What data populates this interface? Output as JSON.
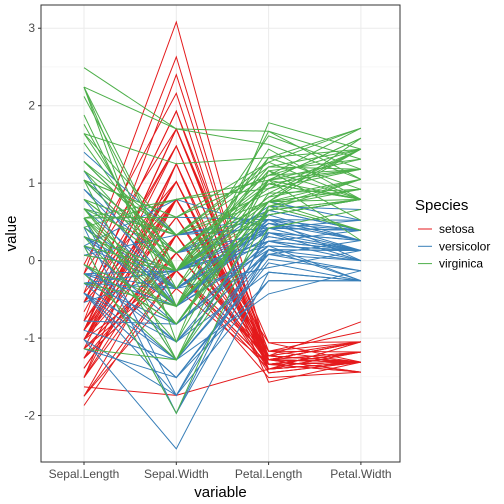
{
  "chart_data": {
    "type": "line",
    "subtype": "parallel-coordinates",
    "title": "",
    "xlabel": "variable",
    "ylabel": "value",
    "categories": [
      "Sepal.Length",
      "Sepal.Width",
      "Petal.Length",
      "Petal.Width"
    ],
    "ylim": [
      -2.6,
      3.3
    ],
    "yticks": [
      -2,
      -1,
      0,
      1,
      2,
      3
    ],
    "grid": true,
    "legend": {
      "title": "Species",
      "placement": "right",
      "entries": [
        "setosa",
        "versicolor",
        "virginica"
      ]
    },
    "colors": {
      "setosa": "#e41a1c",
      "versicolor": "#377eb8",
      "virginica": "#4daf4a",
      "panel_border": "#333333",
      "grid": "#ebebeb"
    },
    "series": [
      {
        "name": "setosa",
        "lines": [
          [
            -0.9,
            1.02,
            -1.34,
            -1.31
          ],
          [
            -1.14,
            -0.13,
            -1.34,
            -1.31
          ],
          [
            -1.39,
            0.33,
            -1.4,
            -1.31
          ],
          [
            -1.51,
            0.1,
            -1.28,
            -1.31
          ],
          [
            -1.02,
            1.25,
            -1.34,
            -1.31
          ],
          [
            -0.54,
            1.93,
            -1.17,
            -1.05
          ],
          [
            -1.51,
            0.79,
            -1.34,
            -1.18
          ],
          [
            -1.02,
            0.79,
            -1.28,
            -1.31
          ],
          [
            -1.75,
            -0.36,
            -1.34,
            -1.31
          ],
          [
            -1.14,
            0.1,
            -1.28,
            -1.44
          ],
          [
            -0.54,
            1.48,
            -1.28,
            -1.31
          ],
          [
            -1.26,
            0.79,
            -1.23,
            -1.31
          ],
          [
            -1.26,
            -0.13,
            -1.34,
            -1.44
          ],
          [
            -1.87,
            -0.13,
            -1.51,
            -1.44
          ],
          [
            -0.05,
            2.16,
            -1.45,
            -1.31
          ],
          [
            -0.17,
            3.08,
            -1.28,
            -1.05
          ],
          [
            -0.54,
            1.93,
            -1.4,
            -1.05
          ],
          [
            -0.9,
            1.02,
            -1.34,
            -1.18
          ],
          [
            -0.17,
            1.7,
            -1.17,
            -1.18
          ],
          [
            -0.9,
            1.7,
            -1.28,
            -1.18
          ],
          [
            -0.54,
            0.79,
            -1.17,
            -1.31
          ],
          [
            -0.9,
            1.48,
            -1.28,
            -1.05
          ],
          [
            -1.51,
            1.25,
            -1.57,
            -1.31
          ],
          [
            -0.9,
            0.56,
            -1.17,
            -0.92
          ],
          [
            -1.26,
            0.79,
            -1.06,
            -1.31
          ],
          [
            -1.02,
            -0.13,
            -1.23,
            -1.31
          ],
          [
            -1.02,
            0.79,
            -1.23,
            -1.05
          ],
          [
            -0.78,
            1.02,
            -1.28,
            -1.31
          ],
          [
            -0.78,
            0.79,
            -1.34,
            -1.31
          ],
          [
            -1.39,
            0.33,
            -1.23,
            -1.31
          ],
          [
            -1.26,
            0.1,
            -1.23,
            -1.31
          ],
          [
            -0.54,
            0.79,
            -1.28,
            -1.05
          ],
          [
            -0.78,
            2.4,
            -1.28,
            -1.44
          ],
          [
            -0.42,
            2.63,
            -1.34,
            -1.31
          ],
          [
            -1.14,
            0.1,
            -1.28,
            -1.31
          ],
          [
            -1.02,
            0.33,
            -1.45,
            -1.31
          ],
          [
            -0.42,
            1.02,
            -1.4,
            -1.31
          ],
          [
            -1.14,
            1.25,
            -1.34,
            -1.44
          ],
          [
            -1.75,
            -0.13,
            -1.4,
            -1.31
          ],
          [
            -0.9,
            0.79,
            -1.28,
            -1.31
          ],
          [
            -1.02,
            1.02,
            -1.4,
            -1.18
          ],
          [
            -1.63,
            -1.74,
            -1.4,
            -1.18
          ],
          [
            -1.75,
            0.33,
            -1.4,
            -1.31
          ],
          [
            -1.02,
            1.02,
            -1.23,
            -0.79
          ],
          [
            -0.9,
            1.7,
            -1.06,
            -1.05
          ],
          [
            -1.26,
            -0.13,
            -1.34,
            -1.18
          ],
          [
            -0.9,
            1.7,
            -1.23,
            -1.31
          ],
          [
            -1.51,
            0.33,
            -1.34,
            -1.31
          ],
          [
            -0.66,
            1.48,
            -1.28,
            -1.31
          ],
          [
            -1.02,
            0.56,
            -1.34,
            -1.31
          ]
        ]
      },
      {
        "name": "versicolor",
        "lines": [
          [
            1.4,
            0.33,
            0.53,
            0.26
          ],
          [
            0.67,
            0.33,
            0.42,
            0.39
          ],
          [
            1.28,
            0.1,
            0.65,
            0.39
          ],
          [
            -0.42,
            -1.74,
            0.14,
            0.13
          ],
          [
            0.79,
            -0.59,
            0.48,
            0.39
          ],
          [
            -0.17,
            -0.59,
            0.42,
            0.13
          ],
          [
            0.55,
            0.56,
            0.53,
            0.52
          ],
          [
            -1.14,
            -1.51,
            -0.26,
            -0.26
          ],
          [
            0.92,
            -0.36,
            0.48,
            0.13
          ],
          [
            -0.78,
            -0.82,
            0.08,
            0.26
          ],
          [
            -1.02,
            -2.43,
            -0.15,
            -0.26
          ],
          [
            0.07,
            -0.13,
            0.25,
            0.39
          ],
          [
            0.19,
            -1.97,
            0.14,
            -0.26
          ],
          [
            0.31,
            -0.36,
            0.53,
            0.26
          ],
          [
            -0.29,
            -0.36,
            -0.09,
            0.13
          ],
          [
            1.04,
            0.1,
            0.36,
            0.26
          ],
          [
            -0.29,
            -0.13,
            0.42,
            0.39
          ],
          [
            -0.05,
            -0.82,
            0.19,
            -0.26
          ],
          [
            0.43,
            -1.97,
            0.42,
            0.39
          ],
          [
            -0.29,
            -1.28,
            0.08,
            -0.13
          ],
          [
            0.07,
            0.33,
            0.59,
            0.79
          ],
          [
            0.31,
            -0.59,
            0.14,
            0.13
          ],
          [
            0.55,
            -1.28,
            0.65,
            0.39
          ],
          [
            0.31,
            -0.59,
            0.53,
            0.0
          ],
          [
            0.67,
            -0.36,
            0.31,
            0.13
          ],
          [
            0.92,
            -0.13,
            0.36,
            0.26
          ],
          [
            1.16,
            -0.59,
            0.59,
            0.26
          ],
          [
            1.04,
            -0.13,
            0.7,
            0.66
          ],
          [
            0.19,
            -0.36,
            0.42,
            0.39
          ],
          [
            -0.17,
            -1.05,
            -0.15,
            -0.26
          ],
          [
            -0.42,
            -1.51,
            0.02,
            -0.13
          ],
          [
            -0.42,
            -1.51,
            -0.03,
            -0.26
          ],
          [
            -0.05,
            -0.82,
            0.08,
            0.0
          ],
          [
            0.19,
            -0.82,
            0.76,
            0.52
          ],
          [
            -0.54,
            -0.13,
            0.42,
            0.39
          ],
          [
            0.19,
            0.79,
            0.42,
            0.52
          ],
          [
            1.04,
            0.1,
            0.53,
            0.39
          ],
          [
            0.55,
            -1.74,
            0.36,
            0.13
          ],
          [
            -0.29,
            -0.13,
            0.19,
            0.13
          ],
          [
            -0.42,
            -1.28,
            0.14,
            0.13
          ],
          [
            -0.42,
            -1.05,
            0.36,
            0.0
          ],
          [
            0.31,
            -0.13,
            0.48,
            0.26
          ],
          [
            -0.05,
            -1.05,
            0.14,
            0.0
          ],
          [
            -1.02,
            -1.74,
            -0.26,
            -0.26
          ],
          [
            -0.29,
            -0.82,
            0.25,
            0.13
          ],
          [
            -0.17,
            -0.13,
            0.25,
            0.0
          ],
          [
            -0.17,
            -0.36,
            0.25,
            0.13
          ],
          [
            0.43,
            -0.36,
            0.31,
            0.13
          ],
          [
            -0.9,
            -1.28,
            -0.43,
            -0.13
          ],
          [
            -0.17,
            -0.59,
            0.19,
            0.13
          ]
        ]
      },
      {
        "name": "virginica",
        "lines": [
          [
            0.55,
            0.56,
            1.27,
            1.71
          ],
          [
            -0.05,
            -0.82,
            0.76,
            0.92
          ],
          [
            1.52,
            -0.13,
            1.21,
            1.18
          ],
          [
            0.55,
            -0.36,
            1.04,
            0.79
          ],
          [
            0.79,
            -0.13,
            1.16,
            1.31
          ],
          [
            2.12,
            -0.13,
            1.61,
            1.18
          ],
          [
            -1.14,
            -1.28,
            0.42,
            0.66
          ],
          [
            1.76,
            -0.36,
            1.44,
            0.79
          ],
          [
            1.04,
            -1.28,
            1.16,
            0.79
          ],
          [
            1.64,
            1.25,
            1.33,
            1.71
          ],
          [
            0.79,
            0.33,
            0.76,
            1.05
          ],
          [
            0.67,
            -0.82,
            0.87,
            0.92
          ],
          [
            1.16,
            -0.13,
            0.99,
            1.18
          ],
          [
            -0.17,
            -1.28,
            0.7,
            1.05
          ],
          [
            -0.05,
            -0.59,
            0.76,
            1.58
          ],
          [
            0.67,
            0.33,
            0.87,
            1.44
          ],
          [
            0.79,
            -0.13,
            0.99,
            0.79
          ],
          [
            2.24,
            1.7,
            1.67,
            1.31
          ],
          [
            2.24,
            -1.05,
            1.78,
            1.44
          ],
          [
            0.19,
            -1.97,
            0.7,
            0.39
          ],
          [
            1.28,
            0.33,
            1.1,
            1.44
          ],
          [
            -0.29,
            -0.59,
            0.65,
            1.05
          ],
          [
            2.24,
            -0.59,
            1.67,
            1.05
          ],
          [
            0.55,
            -0.82,
            0.65,
            0.79
          ],
          [
            1.04,
            0.56,
            1.1,
            1.18
          ],
          [
            1.64,
            0.33,
            1.27,
            0.79
          ],
          [
            0.43,
            -0.59,
            0.59,
            0.79
          ],
          [
            0.31,
            -0.13,
            0.65,
            0.79
          ],
          [
            0.67,
            -0.59,
            1.04,
            1.18
          ],
          [
            1.64,
            -0.13,
            1.16,
            0.52
          ],
          [
            1.88,
            -0.59,
            1.33,
            0.92
          ],
          [
            2.49,
            1.7,
            1.5,
            1.05
          ],
          [
            0.67,
            -0.59,
            1.04,
            1.31
          ],
          [
            0.55,
            -0.59,
            0.76,
            0.39
          ],
          [
            0.31,
            -1.05,
            1.04,
            0.26
          ],
          [
            2.24,
            -0.13,
            1.33,
            1.44
          ],
          [
            0.55,
            0.79,
            1.04,
            1.58
          ],
          [
            0.67,
            0.1,
            0.99,
            0.79
          ],
          [
            0.19,
            -0.13,
            0.59,
            0.79
          ],
          [
            1.28,
            0.1,
            0.93,
            1.18
          ],
          [
            1.04,
            0.1,
            1.04,
            1.58
          ],
          [
            1.28,
            0.1,
            0.76,
            1.44
          ],
          [
            -0.05,
            -0.82,
            0.76,
            0.92
          ],
          [
            1.16,
            0.33,
            1.21,
            1.44
          ],
          [
            1.04,
            0.56,
            1.1,
            1.71
          ],
          [
            1.04,
            -0.13,
            0.82,
            1.44
          ],
          [
            0.55,
            -1.28,
            0.7,
            0.92
          ],
          [
            0.79,
            -0.13,
            0.82,
            1.05
          ],
          [
            0.43,
            0.79,
            0.93,
            1.44
          ],
          [
            0.07,
            -0.13,
            0.76,
            0.79
          ]
        ]
      }
    ]
  }
}
